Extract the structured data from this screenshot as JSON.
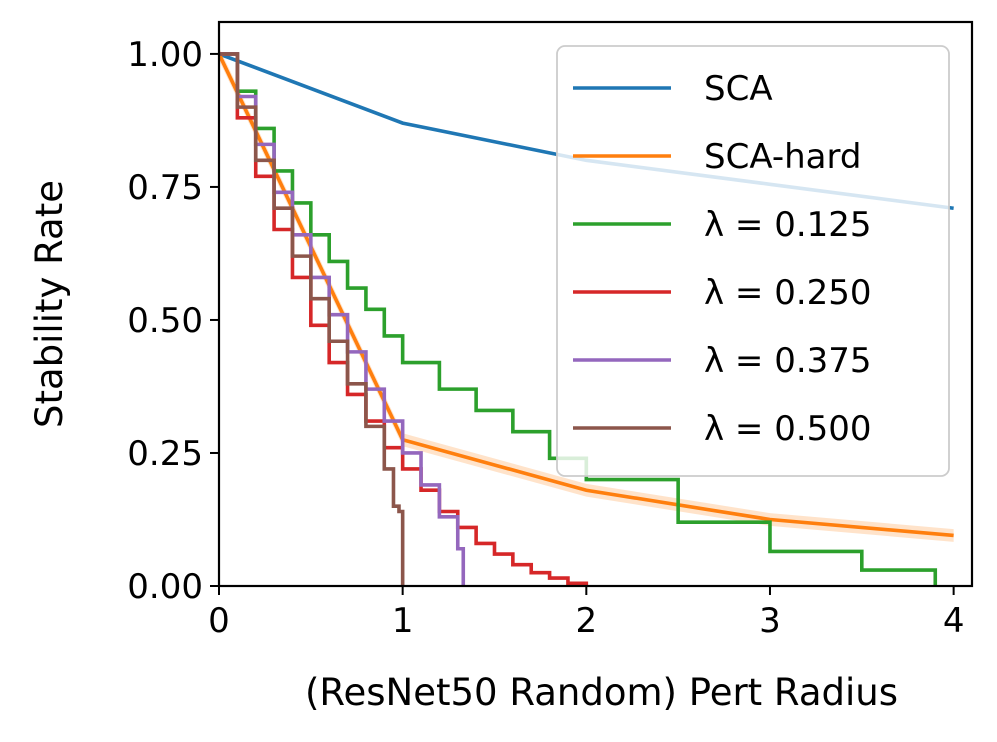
{
  "chart_data": {
    "type": "line",
    "xlabel": "(ResNet50 Random) Pert Radius",
    "ylabel": "Stability Rate",
    "xlim": [
      0,
      4.1
    ],
    "ylim": [
      0,
      1.06
    ],
    "xticks": [
      "0",
      "1",
      "2",
      "3",
      "4"
    ],
    "yticks": [
      "0.00",
      "0.25",
      "0.50",
      "0.75",
      "1.00"
    ],
    "grid": false,
    "legend_position": "top-right",
    "series": [
      {
        "name": "SCA",
        "color": "#1f77b4",
        "step": false,
        "x": [
          0,
          1,
          2,
          3,
          4
        ],
        "y": [
          1.0,
          0.87,
          0.8,
          0.755,
          0.71
        ]
      },
      {
        "name": "SCA-hard",
        "color": "#ff7f0e",
        "step": false,
        "band": 0.012,
        "x": [
          0,
          1,
          2,
          3,
          4
        ],
        "y": [
          1.0,
          0.275,
          0.18,
          0.125,
          0.095
        ]
      },
      {
        "name": "λ = 0.125",
        "color": "#2ca02c",
        "step": true,
        "x": [
          0,
          0.1,
          0.2,
          0.3,
          0.4,
          0.5,
          0.6,
          0.7,
          0.8,
          0.9,
          1.0,
          1.2,
          1.4,
          1.6,
          1.8,
          2.0,
          2.5,
          3.0,
          3.5,
          3.9
        ],
        "y": [
          1.0,
          0.93,
          0.86,
          0.78,
          0.72,
          0.66,
          0.61,
          0.56,
          0.52,
          0.47,
          0.42,
          0.37,
          0.33,
          0.29,
          0.24,
          0.2,
          0.12,
          0.065,
          0.03,
          0.0
        ]
      },
      {
        "name": "λ = 0.250",
        "color": "#d62728",
        "step": true,
        "x": [
          0,
          0.1,
          0.2,
          0.3,
          0.4,
          0.5,
          0.6,
          0.7,
          0.8,
          0.9,
          1.0,
          1.1,
          1.2,
          1.3,
          1.4,
          1.5,
          1.6,
          1.7,
          1.8,
          1.9,
          2.0
        ],
        "y": [
          1.0,
          0.88,
          0.77,
          0.67,
          0.58,
          0.49,
          0.42,
          0.36,
          0.31,
          0.26,
          0.22,
          0.18,
          0.14,
          0.11,
          0.08,
          0.06,
          0.04,
          0.025,
          0.015,
          0.005,
          0.0
        ]
      },
      {
        "name": "λ = 0.375",
        "color": "#9467bd",
        "step": true,
        "x": [
          0,
          0.1,
          0.2,
          0.3,
          0.4,
          0.5,
          0.6,
          0.7,
          0.8,
          0.9,
          1.0,
          1.1,
          1.2,
          1.3,
          1.33
        ],
        "y": [
          1.0,
          0.92,
          0.83,
          0.74,
          0.66,
          0.58,
          0.51,
          0.44,
          0.37,
          0.31,
          0.25,
          0.19,
          0.13,
          0.07,
          0.0
        ]
      },
      {
        "name": "λ = 0.500",
        "color": "#8c564b",
        "step": true,
        "x": [
          0,
          0.1,
          0.2,
          0.3,
          0.4,
          0.5,
          0.6,
          0.7,
          0.8,
          0.9,
          0.95,
          0.98,
          1.0
        ],
        "y": [
          1.0,
          0.9,
          0.8,
          0.71,
          0.62,
          0.54,
          0.46,
          0.38,
          0.3,
          0.22,
          0.15,
          0.14,
          0.0
        ]
      }
    ]
  }
}
